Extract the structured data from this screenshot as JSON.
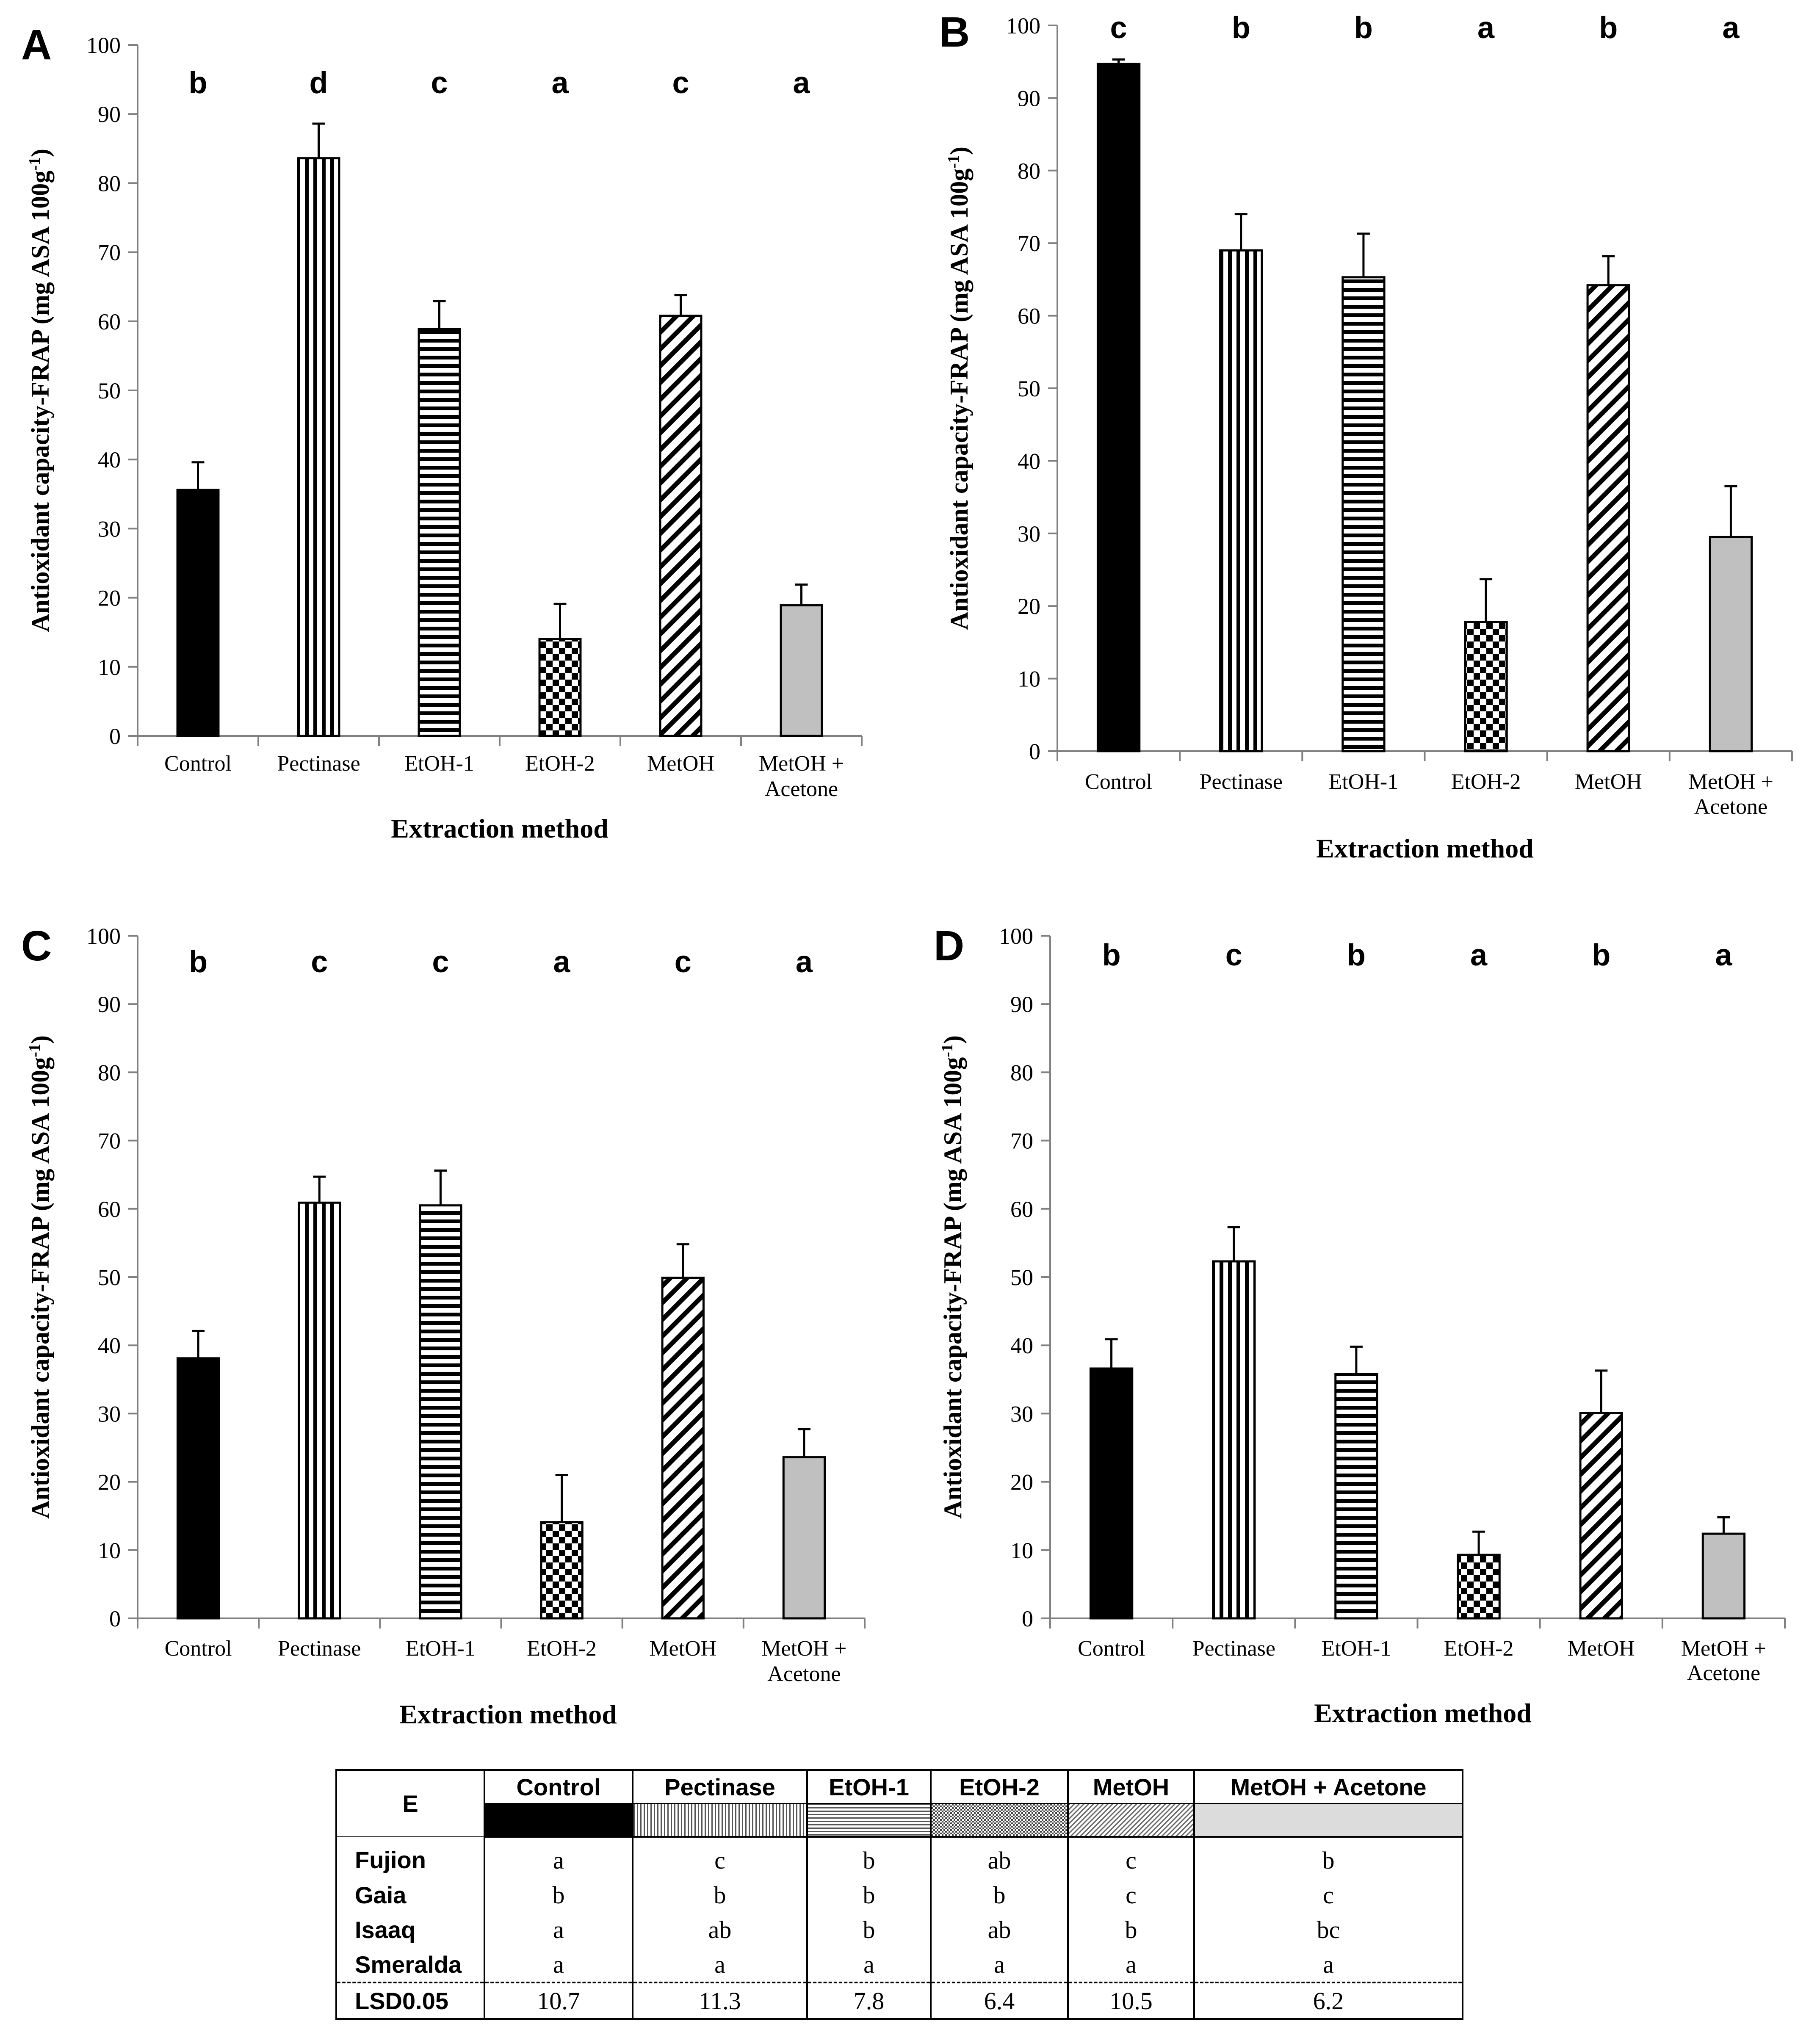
{
  "chart_data": [
    {
      "type": "bar",
      "panel_label": "A",
      "categories": [
        "Control",
        "Pectinase",
        "EtOH-1",
        "EtOH-2",
        "MetOH",
        "MetOH + Acetone"
      ],
      "values": [
        35.6,
        83.6,
        58.9,
        14.0,
        60.8,
        18.9
      ],
      "errors": [
        4.0,
        5.0,
        4.0,
        5.1,
        3.0,
        3.0
      ],
      "significance": [
        "b",
        "d",
        "c",
        "a",
        "c",
        "a"
      ],
      "xlabel": "Extraction method",
      "ylabel": "Antioxidant capacity-FRAP (mg ASA 100g-1)",
      "ylim": [
        0,
        100
      ],
      "yticks": [
        0,
        10,
        20,
        30,
        40,
        50,
        60,
        70,
        80,
        90,
        100
      ]
    },
    {
      "type": "bar",
      "panel_label": "B",
      "categories": [
        "Control",
        "Pectinase",
        "EtOH-1",
        "EtOH-2",
        "MetOH",
        "MetOH + Acetone"
      ],
      "values": [
        94.7,
        69.0,
        65.3,
        17.8,
        64.2,
        29.5
      ],
      "errors": [
        0.6,
        5.0,
        6.0,
        5.9,
        4.0,
        7.0
      ],
      "significance": [
        "c",
        "b",
        "b",
        "a",
        "b",
        "a"
      ],
      "xlabel": "Extraction method",
      "ylabel": "Antioxidant capacity-FRAP (mg ASA 100g-1)",
      "ylim": [
        0,
        100
      ],
      "yticks": [
        0,
        10,
        20,
        30,
        40,
        50,
        60,
        70,
        80,
        90,
        100
      ]
    },
    {
      "type": "bar",
      "panel_label": "C",
      "categories": [
        "Control",
        "Pectinase",
        "EtOH-1",
        "EtOH-2",
        "MetOH",
        "MetOH + Acetone"
      ],
      "values": [
        38.1,
        60.9,
        60.5,
        14.1,
        49.9,
        23.6
      ],
      "errors": [
        4.0,
        3.8,
        5.1,
        6.9,
        4.9,
        4.1
      ],
      "significance": [
        "b",
        "c",
        "c",
        "a",
        "c",
        "a"
      ],
      "xlabel": "Extraction method",
      "ylabel": "Antioxidant capacity-FRAP (mg ASA 100g-1)",
      "ylim": [
        0,
        100
      ],
      "yticks": [
        0,
        10,
        20,
        30,
        40,
        50,
        60,
        70,
        80,
        90,
        100
      ]
    },
    {
      "type": "bar",
      "panel_label": "D",
      "categories": [
        "Control",
        "Pectinase",
        "EtOH-1",
        "EtOH-2",
        "MetOH",
        "MetOH + Acetone"
      ],
      "values": [
        36.6,
        52.3,
        35.8,
        9.3,
        30.1,
        12.4
      ],
      "errors": [
        4.3,
        5.0,
        4.0,
        3.4,
        6.2,
        2.4
      ],
      "significance": [
        "b",
        "c",
        "b",
        "a",
        "b",
        "a"
      ],
      "xlabel": "Extraction method",
      "ylabel": "Antioxidant capacity-FRAP (mg ASA 100g-1)",
      "ylim": [
        0,
        100
      ],
      "yticks": [
        0,
        10,
        20,
        30,
        40,
        50,
        60,
        70,
        80,
        90,
        100
      ]
    },
    {
      "type": "table",
      "panel_label": "E",
      "columns": [
        "Control",
        "Pectinase",
        "EtOH-1",
        "EtOH-2",
        "MetOH",
        "MetOH + Acetone"
      ],
      "rows": [
        {
          "label": "Fujion",
          "cells": [
            "a",
            "c",
            "b",
            "ab",
            "c",
            "b"
          ]
        },
        {
          "label": "Gaia",
          "cells": [
            "b",
            "b",
            "b",
            "b",
            "c",
            "c"
          ]
        },
        {
          "label": "Isaaq",
          "cells": [
            "a",
            "ab",
            "b",
            "ab",
            "b",
            "bc"
          ]
        },
        {
          "label": "Smeralda",
          "cells": [
            "a",
            "a",
            "a",
            "a",
            "a",
            "a"
          ]
        }
      ],
      "lsd": {
        "label": "LSD0.05",
        "cells": [
          "10.7",
          "11.3",
          "7.8",
          "6.4",
          "10.5",
          "6.2"
        ]
      }
    }
  ],
  "labels": {
    "ylabel_main": "Antioxidant capacity-FRAP (mg ASA 100g",
    "ylabel_sup": "-1",
    "ylabel_close": ")",
    "cat_line1": [
      "Control",
      "Pectinase",
      "EtOH-1",
      "EtOH-2",
      "MetOH",
      "MetOH +"
    ],
    "cat_line2": [
      "",
      "",
      "",
      "",
      "",
      "Acetone"
    ]
  },
  "colors": {
    "control": "#000000",
    "acetone": "#c0c0c0",
    "axis": "#808080",
    "text": "#000000"
  }
}
